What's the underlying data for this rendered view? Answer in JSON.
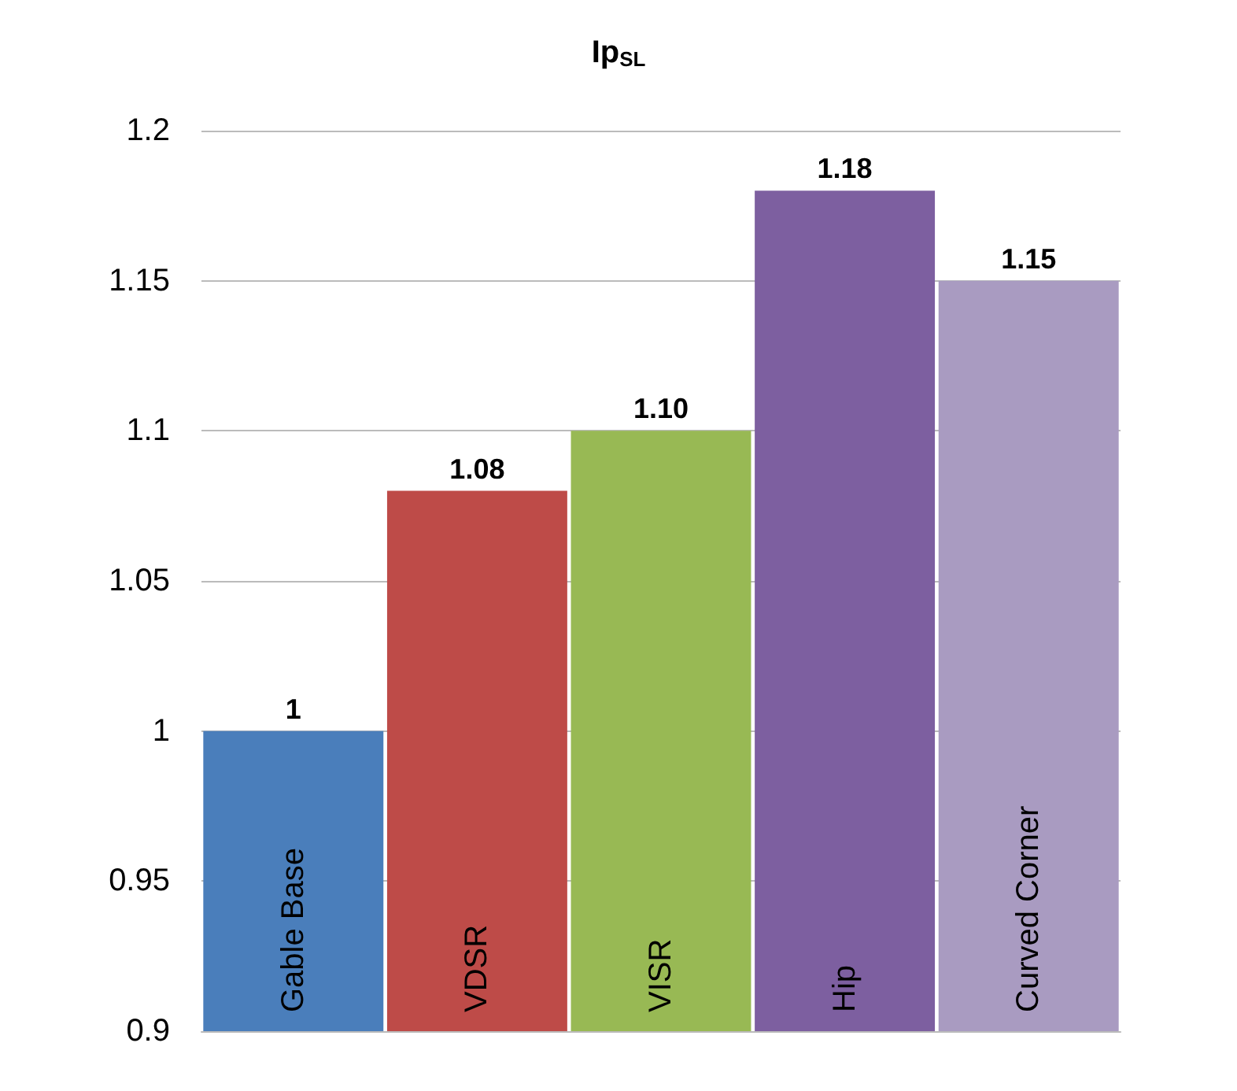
{
  "chart_data": {
    "type": "bar",
    "title": "Ip$_{SL}$",
    "categories": [
      "Gable Base",
      "VDSR",
      "VISR",
      "Hip",
      "Curved Corner"
    ],
    "values": [
      1,
      1.08,
      1.1,
      1.18,
      1.15
    ],
    "value_labels": [
      "1",
      "1.08",
      "1.10",
      "1.18",
      "1.15"
    ],
    "colors": [
      "#4a7ebb",
      "#be4b48",
      "#98b954",
      "#7d5fa0",
      "#a99bc1"
    ],
    "ylim": [
      0.9,
      1.2
    ],
    "yticks": [
      0.9,
      0.95,
      1,
      1.05,
      1.1,
      1.15,
      1.2
    ],
    "grid": "y"
  }
}
